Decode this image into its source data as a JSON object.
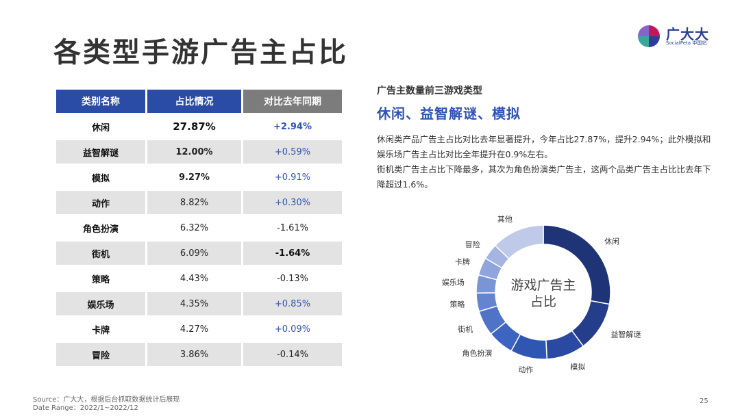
{
  "page": {
    "title": "各类型手游广告主占比",
    "page_number": "25",
    "source_line": "Source：广大大，根据后台抓取数据统计后展现",
    "date_line": "Date Range：2022/1~2022/12"
  },
  "logo": {
    "brand": "广大大",
    "sub": "SocialPeta 中国站",
    "colors": [
      "#c2185b",
      "#2d3e9a",
      "#3aa79a",
      "#8a63c7"
    ]
  },
  "table": {
    "headers": [
      "类别名称",
      "占比情况",
      "对比去年同期"
    ],
    "rows": [
      {
        "category": "休闲",
        "share": "27.87%",
        "change": "+2.94%"
      },
      {
        "category": "益智解谜",
        "share": "12.00%",
        "change": "+0.59%"
      },
      {
        "category": "模拟",
        "share": "9.27%",
        "change": "+0.91%"
      },
      {
        "category": "动作",
        "share": "8.82%",
        "change": "+0.30%"
      },
      {
        "category": "角色扮演",
        "share": "6.32%",
        "change": "-1.61%"
      },
      {
        "category": "街机",
        "share": "6.09%",
        "change": "-1.64%"
      },
      {
        "category": "策略",
        "share": "4.43%",
        "change": "-0.13%"
      },
      {
        "category": "娱乐场",
        "share": "4.35%",
        "change": "+0.85%"
      },
      {
        "category": "卡牌",
        "share": "4.27%",
        "change": "+0.09%"
      },
      {
        "category": "冒险",
        "share": "3.86%",
        "change": "-0.14%"
      }
    ]
  },
  "insight": {
    "kicker": "广告主数量前三游戏类型",
    "headline": "休闲、益智解谜、模拟",
    "paragraphs": [
      "休闲类产品广告主占比对比去年显著提升，今年占比27.87%，提升2.94%；此外模拟和娱乐场广告主占比对比全年提升在0.9%左右。",
      "街机类广告主占比下降最多，其次为角色扮演类广告主，这两个品类广告主占比比去年下降超过1.6%。"
    ]
  },
  "chart_data": {
    "type": "pie",
    "center_label_lines": [
      "游戏广告主",
      "占比"
    ],
    "categories": [
      "休闲",
      "益智解谜",
      "模拟",
      "动作",
      "角色扮演",
      "街机",
      "策略",
      "娱乐场",
      "卡牌",
      "冒险",
      "其他"
    ],
    "values": [
      27.87,
      12.0,
      9.27,
      8.82,
      6.32,
      6.09,
      4.43,
      4.35,
      4.27,
      3.86,
      12.72
    ],
    "colors": [
      "#1e3477",
      "#243e8c",
      "#2a49a2",
      "#3056b4",
      "#3d64c0",
      "#4f73c7",
      "#6584cf",
      "#7a94d6",
      "#8fa5dc",
      "#a5b5e2",
      "#bfc9e8"
    ],
    "legend": "none"
  }
}
